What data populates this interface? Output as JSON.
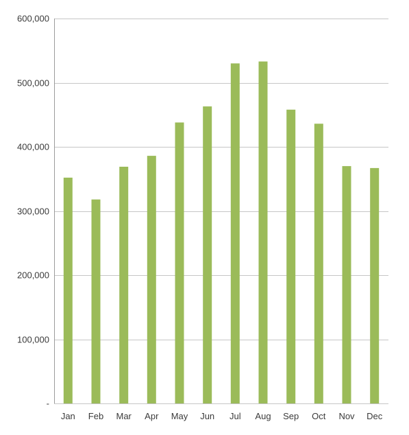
{
  "chart_data": {
    "type": "bar",
    "title": "",
    "xlabel": "",
    "ylabel": "",
    "categories": [
      "Jan",
      "Feb",
      "Mar",
      "Apr",
      "May",
      "Jun",
      "Jul",
      "Aug",
      "Sep",
      "Oct",
      "Nov",
      "Dec"
    ],
    "values": [
      352000,
      318000,
      369000,
      386000,
      438000,
      463000,
      530000,
      533000,
      458000,
      436000,
      370000,
      367000
    ],
    "ylim": [
      0,
      600000
    ],
    "yticks": [
      0,
      100000,
      200000,
      300000,
      400000,
      500000,
      600000
    ],
    "ytick_labels": [
      "-",
      "100,000",
      "200,000",
      "300,000",
      "400,000",
      "500,000",
      "600,000"
    ],
    "grid": true,
    "legend": "none",
    "colors": {
      "bar": "#9bbb59",
      "grid": "#c6c6c6",
      "text": "#3a3a3a"
    }
  }
}
